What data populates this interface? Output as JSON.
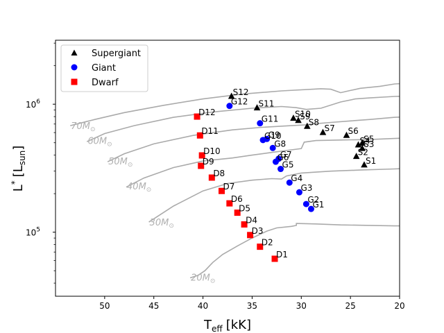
{
  "chart_data": {
    "type": "scatter",
    "title": "",
    "xlabel_main": "T",
    "xlabel_sub": "eff",
    "xlabel_unit": "[kK]",
    "ylabel_main": "L",
    "ylabel_sup": "*",
    "ylabel_unit_main": "[L",
    "ylabel_unit_sub": "sun",
    "ylabel_unit_close": "]",
    "x_inverted": true,
    "xlim": [
      55,
      20
    ],
    "ylim": [
      31600,
      3160000
    ],
    "yscale": "log",
    "x_ticks": [
      50,
      45,
      40,
      35,
      30,
      25,
      20
    ],
    "x_tick_labels": [
      "50",
      "45",
      "40",
      "35",
      "30",
      "25",
      "20"
    ],
    "y_ticks": [
      100000,
      1000000
    ],
    "y_tick_base": "10",
    "y_tick_exps": [
      "5",
      "6"
    ],
    "legend": {
      "placement": "top-left",
      "entries": [
        {
          "name": "Supergiant",
          "marker": "triangle",
          "color": "#000000"
        },
        {
          "name": "Giant",
          "marker": "circle",
          "color": "#0000ff"
        },
        {
          "name": "Dwarf",
          "marker": "square",
          "color": "#ff0000"
        }
      ]
    },
    "series": [
      {
        "name": "Supergiant",
        "marker": "triangle",
        "color": "#000000",
        "points": [
          {
            "label": "S1",
            "x": 23.6,
            "y": 335000
          },
          {
            "label": "S2",
            "x": 24.4,
            "y": 390000
          },
          {
            "label": "S3",
            "x": 23.8,
            "y": 450000
          },
          {
            "label": "S4",
            "x": 24.2,
            "y": 480000
          },
          {
            "label": "S5",
            "x": 23.8,
            "y": 495000
          },
          {
            "label": "S6",
            "x": 25.4,
            "y": 570000
          },
          {
            "label": "S7",
            "x": 27.8,
            "y": 600000
          },
          {
            "label": "S8",
            "x": 29.4,
            "y": 670000
          },
          {
            "label": "S9",
            "x": 30.3,
            "y": 745000
          },
          {
            "label": "S10",
            "x": 30.8,
            "y": 775000
          },
          {
            "label": "S11",
            "x": 34.5,
            "y": 935000
          },
          {
            "label": "S12",
            "x": 37.1,
            "y": 1150000
          }
        ]
      },
      {
        "name": "Giant",
        "marker": "circle",
        "color": "#0000ff",
        "points": [
          {
            "label": "G1",
            "x": 29.0,
            "y": 152000
          },
          {
            "label": "G2",
            "x": 29.5,
            "y": 166000
          },
          {
            "label": "G3",
            "x": 30.2,
            "y": 205000
          },
          {
            "label": "G4",
            "x": 31.2,
            "y": 244000
          },
          {
            "label": "G5",
            "x": 32.1,
            "y": 312000
          },
          {
            "label": "G6",
            "x": 32.6,
            "y": 355000
          },
          {
            "label": "G7",
            "x": 32.3,
            "y": 375000
          },
          {
            "label": "G8",
            "x": 32.9,
            "y": 455000
          },
          {
            "label": "G9",
            "x": 33.5,
            "y": 535000
          },
          {
            "label": "G10",
            "x": 33.9,
            "y": 525000
          },
          {
            "label": "G11",
            "x": 34.2,
            "y": 710000
          },
          {
            "label": "G12",
            "x": 37.3,
            "y": 970000
          }
        ]
      },
      {
        "name": "Dwarf",
        "marker": "square",
        "color": "#ff0000",
        "points": [
          {
            "label": "D1",
            "x": 32.7,
            "y": 62000
          },
          {
            "label": "D2",
            "x": 34.2,
            "y": 77000
          },
          {
            "label": "D3",
            "x": 35.2,
            "y": 95000
          },
          {
            "label": "D4",
            "x": 35.8,
            "y": 115000
          },
          {
            "label": "D5",
            "x": 36.5,
            "y": 142000
          },
          {
            "label": "D6",
            "x": 37.3,
            "y": 168000
          },
          {
            "label": "D7",
            "x": 38.1,
            "y": 210000
          },
          {
            "label": "D8",
            "x": 39.1,
            "y": 267000
          },
          {
            "label": "D9",
            "x": 40.2,
            "y": 330000
          },
          {
            "label": "D10",
            "x": 40.1,
            "y": 398000
          },
          {
            "label": "D11",
            "x": 40.3,
            "y": 570000
          },
          {
            "label": "D12",
            "x": 40.6,
            "y": 800000
          }
        ]
      }
    ],
    "tracks": [
      {
        "label_main": "70M",
        "label_sub": "⊙",
        "label_x": 53.5,
        "label_y": 680000,
        "points": [
          [
            53.5,
            680000
          ],
          [
            51,
            760000
          ],
          [
            48,
            860000
          ],
          [
            44,
            980000
          ],
          [
            40,
            1100000
          ],
          [
            36,
            1200000
          ],
          [
            32,
            1270000
          ],
          [
            28,
            1320000
          ],
          [
            27,
            1310000
          ],
          [
            26,
            1230000
          ],
          [
            25,
            1280000
          ],
          [
            24,
            1330000
          ],
          [
            22,
            1380000
          ],
          [
            20.5,
            1440000
          ],
          [
            19,
            1460000
          ]
        ]
      },
      {
        "label_main": "60M",
        "label_sub": "⊙",
        "label_x": 51.8,
        "label_y": 520000,
        "points": [
          [
            51.8,
            510000
          ],
          [
            50,
            590000
          ],
          [
            47,
            680000
          ],
          [
            43,
            790000
          ],
          [
            39,
            870000
          ],
          [
            35,
            930000
          ],
          [
            32,
            960000
          ],
          [
            30.5,
            940000
          ],
          [
            29.5,
            910000
          ],
          [
            28,
            930000
          ],
          [
            26,
            1040000
          ],
          [
            24.5,
            1100000
          ],
          [
            23,
            1120000
          ],
          [
            20.5,
            1150000
          ],
          [
            19,
            1160000
          ]
        ]
      },
      {
        "label_main": "50M",
        "label_sub": "⊙",
        "label_x": 49.7,
        "label_y": 360000,
        "points": [
          [
            49.7,
            355000
          ],
          [
            48,
            410000
          ],
          [
            45,
            490000
          ],
          [
            41,
            570000
          ],
          [
            37,
            630000
          ],
          [
            34,
            660000
          ],
          [
            31,
            680000
          ],
          [
            29.5,
            690000
          ],
          [
            29,
            700000
          ],
          [
            27,
            720000
          ],
          [
            25,
            740000
          ],
          [
            23,
            760000
          ],
          [
            20.5,
            790000
          ],
          [
            19,
            800000
          ]
        ]
      },
      {
        "label_main": "40M",
        "label_sub": "⊙",
        "label_x": 47.8,
        "label_y": 230000,
        "points": [
          [
            47.8,
            225000
          ],
          [
            46,
            265000
          ],
          [
            43,
            320000
          ],
          [
            40,
            360000
          ],
          [
            37,
            380000
          ],
          [
            35,
            400000
          ],
          [
            33,
            420000
          ],
          [
            31,
            440000
          ],
          [
            30,
            450000
          ],
          [
            29.7,
            505000
          ],
          [
            28.5,
            520000
          ],
          [
            26,
            525000
          ],
          [
            23,
            530000
          ],
          [
            20.5,
            540000
          ],
          [
            19,
            545000
          ]
        ]
      },
      {
        "label_main": "30M",
        "label_sub": "⊙",
        "label_x": 45.5,
        "label_y": 120000,
        "points": [
          [
            45.5,
            120000
          ],
          [
            43,
            160000
          ],
          [
            40,
            210000
          ],
          [
            37.5,
            240000
          ],
          [
            35,
            255000
          ],
          [
            33,
            262000
          ],
          [
            32,
            260000
          ],
          [
            31.5,
            275000
          ],
          [
            30,
            290000
          ],
          [
            27,
            300000
          ],
          [
            24,
            306000
          ],
          [
            20.5,
            312000
          ],
          [
            19,
            316000
          ]
        ]
      },
      {
        "label_main": "20M",
        "label_sub": "⊙",
        "label_x": 41.3,
        "label_y": 44500,
        "points": [
          [
            41.3,
            44000
          ],
          [
            40.5,
            46000
          ],
          [
            39.8,
            50000
          ],
          [
            39,
            58000
          ],
          [
            38,
            67000
          ],
          [
            36.5,
            78000
          ],
          [
            35,
            90000
          ],
          [
            33.5,
            102000
          ],
          [
            32.5,
            108000
          ],
          [
            31,
            111000
          ],
          [
            30.5,
            113000
          ],
          [
            30.5,
            117000
          ],
          [
            28.5,
            116000
          ],
          [
            26,
            114000
          ],
          [
            23,
            113000
          ],
          [
            20.5,
            112000
          ],
          [
            19,
            112000
          ]
        ]
      }
    ]
  }
}
